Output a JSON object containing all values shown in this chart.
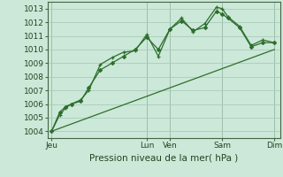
{
  "bg_color": "#cce8d8",
  "grid_color": "#aaccbb",
  "line_color": "#2d6e2d",
  "xlabel": "Pression niveau de la mer( hPa )",
  "ylim": [
    1003.5,
    1013.5
  ],
  "yticks": [
    1004,
    1005,
    1006,
    1007,
    1008,
    1009,
    1010,
    1011,
    1012,
    1013
  ],
  "xlim": [
    0,
    20
  ],
  "day_labels": [
    "Jeu",
    "Lun",
    "Ven",
    "Sam",
    "Dim"
  ],
  "day_positions": [
    0.3,
    8.5,
    10.5,
    15.0,
    19.5
  ],
  "vline_positions": [
    0.3,
    8.5,
    10.5,
    15.0,
    19.5
  ],
  "series1_x": [
    0.3,
    1.0,
    1.5,
    2.0,
    2.8,
    3.5,
    4.5,
    5.5,
    6.5,
    7.5,
    8.5,
    9.5,
    10.5,
    11.5,
    12.5,
    13.5,
    14.5,
    15.0,
    15.5,
    16.5,
    17.5,
    18.5,
    19.5
  ],
  "series1_y": [
    1004.0,
    1005.2,
    1005.7,
    1006.0,
    1006.3,
    1007.0,
    1008.9,
    1009.4,
    1009.8,
    1009.9,
    1011.1,
    1009.5,
    1011.5,
    1012.3,
    1011.3,
    1011.9,
    1013.1,
    1013.0,
    1012.4,
    1011.7,
    1010.3,
    1010.7,
    1010.5
  ],
  "series2_x": [
    0.3,
    1.0,
    1.5,
    2.0,
    2.8,
    3.5,
    4.5,
    5.5,
    6.5,
    7.5,
    8.5,
    9.5,
    10.5,
    11.5,
    12.5,
    13.5,
    14.5,
    15.0,
    15.5,
    16.5,
    17.5,
    18.5,
    19.5
  ],
  "series2_y": [
    1004.0,
    1005.4,
    1005.8,
    1006.0,
    1006.2,
    1007.2,
    1008.5,
    1009.0,
    1009.5,
    1010.0,
    1010.9,
    1010.0,
    1011.5,
    1012.1,
    1011.4,
    1011.6,
    1012.8,
    1012.6,
    1012.3,
    1011.6,
    1010.2,
    1010.5,
    1010.5
  ],
  "series3_x": [
    0.3,
    19.5
  ],
  "series3_y": [
    1004.0,
    1010.0
  ]
}
